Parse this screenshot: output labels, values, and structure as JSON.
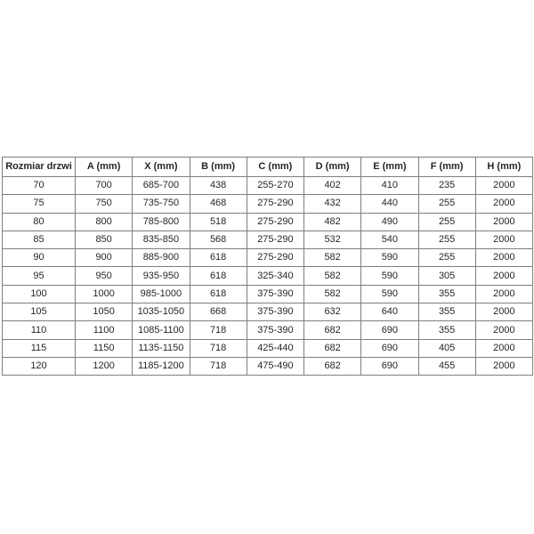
{
  "chart_data": {
    "type": "table",
    "title": "",
    "columns": [
      "Rozmiar drzwi",
      "A (mm)",
      "X (mm)",
      "B (mm)",
      "C (mm)",
      "D (mm)",
      "E (mm)",
      "F (mm)",
      "H (mm)"
    ],
    "rows": [
      [
        "70",
        "700",
        "685-700",
        "438",
        "255-270",
        "402",
        "410",
        "235",
        "2000"
      ],
      [
        "75",
        "750",
        "735-750",
        "468",
        "275-290",
        "432",
        "440",
        "255",
        "2000"
      ],
      [
        "80",
        "800",
        "785-800",
        "518",
        "275-290",
        "482",
        "490",
        "255",
        "2000"
      ],
      [
        "85",
        "850",
        "835-850",
        "568",
        "275-290",
        "532",
        "540",
        "255",
        "2000"
      ],
      [
        "90",
        "900",
        "885-900",
        "618",
        "275-290",
        "582",
        "590",
        "255",
        "2000"
      ],
      [
        "95",
        "950",
        "935-950",
        "618",
        "325-340",
        "582",
        "590",
        "305",
        "2000"
      ],
      [
        "100",
        "1000",
        "985-1000",
        "618",
        "375-390",
        "582",
        "590",
        "355",
        "2000"
      ],
      [
        "105",
        "1050",
        "1035-1050",
        "668",
        "375-390",
        "632",
        "640",
        "355",
        "2000"
      ],
      [
        "110",
        "1100",
        "1085-1100",
        "718",
        "375-390",
        "682",
        "690",
        "355",
        "2000"
      ],
      [
        "115",
        "1150",
        "1135-1150",
        "718",
        "425-440",
        "682",
        "690",
        "405",
        "2000"
      ],
      [
        "120",
        "1200",
        "1185-1200",
        "718",
        "475-490",
        "682",
        "690",
        "455",
        "2000"
      ]
    ]
  },
  "colors": {
    "border": "#7f7f7f",
    "text": "#262626",
    "background": "#ffffff"
  }
}
